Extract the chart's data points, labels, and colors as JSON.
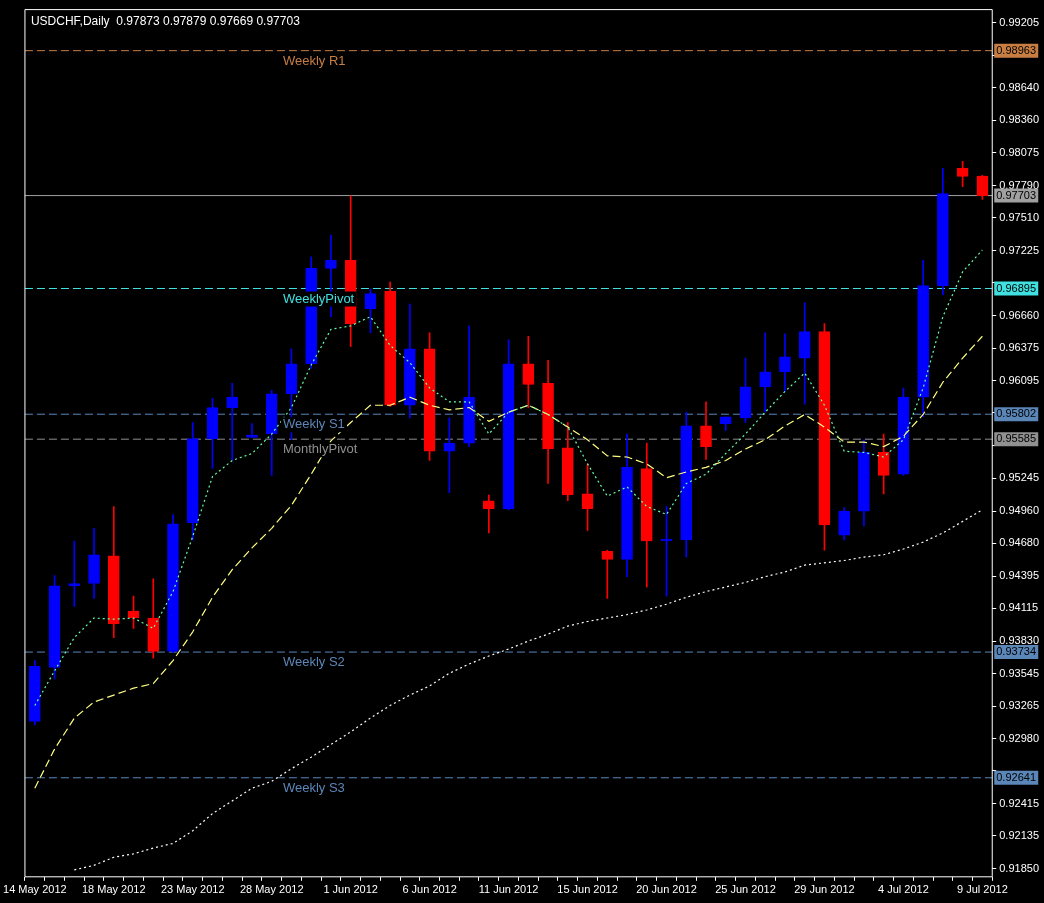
{
  "chart_data": {
    "type": "candlestick",
    "title": "USDCHF,Daily  0.97873 0.97879 0.97669 0.97703",
    "categories": [
      "14 May 2012",
      null,
      null,
      null,
      "18 May 2012",
      null,
      null,
      null,
      "23 May 2012",
      null,
      null,
      null,
      "28 May 2012",
      null,
      null,
      null,
      "1 Jun 2012",
      null,
      null,
      null,
      "6 Jun 2012",
      null,
      null,
      null,
      "11 Jun 2012",
      null,
      null,
      null,
      "15 Jun 2012",
      null,
      null,
      null,
      "20 Jun 2012",
      null,
      null,
      null,
      "25 Jun 2012",
      null,
      null,
      null,
      "29 Jun 2012",
      null,
      null,
      null,
      "4 Jul 2012",
      null,
      null,
      null,
      "9 Jul 2012"
    ],
    "ohlc": [
      [
        0.9313,
        0.9366,
        0.931,
        0.9361
      ],
      [
        0.936,
        0.944,
        0.935,
        0.9431
      ],
      [
        0.9431,
        0.947,
        0.9413,
        0.9433
      ],
      [
        0.9433,
        0.9481,
        0.942,
        0.9458
      ],
      [
        0.9457,
        0.95,
        0.9386,
        0.9398
      ],
      [
        0.9409,
        0.9422,
        0.9394,
        0.9403
      ],
      [
        0.9403,
        0.9437,
        0.9368,
        0.9374
      ],
      [
        0.9374,
        0.9493,
        0.9373,
        0.9485
      ],
      [
        0.9486,
        0.9573,
        0.9471,
        0.9559
      ],
      [
        0.9559,
        0.9594,
        0.9533,
        0.9586
      ],
      [
        0.9586,
        0.9607,
        0.954,
        0.9595
      ],
      [
        0.956,
        0.9572,
        0.956,
        0.9562
      ],
      [
        0.9563,
        0.9601,
        0.9527,
        0.9598
      ],
      [
        0.9598,
        0.9637,
        0.9558,
        0.9624
      ],
      [
        0.9624,
        0.9717,
        0.962,
        0.9707
      ],
      [
        0.9707,
        0.9736,
        0.9665,
        0.9714
      ],
      [
        0.9714,
        0.977,
        0.9639,
        0.9659
      ],
      [
        0.9672,
        0.9689,
        0.9651,
        0.9685
      ],
      [
        0.9687,
        0.9695,
        0.9587,
        0.9588
      ],
      [
        0.9588,
        0.9676,
        0.9577,
        0.9637
      ],
      [
        0.9637,
        0.9651,
        0.954,
        0.9548
      ],
      [
        0.9548,
        0.9577,
        0.9512,
        0.9555
      ],
      [
        0.9555,
        0.9657,
        0.9552,
        0.9595
      ],
      [
        0.9505,
        0.951,
        0.9477,
        0.9498
      ],
      [
        0.9498,
        0.9645,
        0.9497,
        0.9624
      ],
      [
        0.9624,
        0.9648,
        0.9586,
        0.9606
      ],
      [
        0.9607,
        0.9627,
        0.952,
        0.955
      ],
      [
        0.9551,
        0.9573,
        0.9505,
        0.951
      ],
      [
        0.9511,
        0.9537,
        0.9479,
        0.9498
      ],
      [
        0.9461,
        0.9462,
        0.942,
        0.9454
      ],
      [
        0.9454,
        0.9563,
        0.9439,
        0.9534
      ],
      [
        0.9533,
        0.9555,
        0.943,
        0.947
      ],
      [
        0.947,
        0.95,
        0.9422,
        0.9471
      ],
      [
        0.9471,
        0.9582,
        0.9456,
        0.957
      ],
      [
        0.957,
        0.9591,
        0.9541,
        0.9552
      ],
      [
        0.9572,
        0.9578,
        0.9566,
        0.9578
      ],
      [
        0.9577,
        0.9629,
        0.9573,
        0.9604
      ],
      [
        0.9604,
        0.9651,
        0.9582,
        0.9617
      ],
      [
        0.9617,
        0.965,
        0.96,
        0.963
      ],
      [
        0.9629,
        0.9677,
        0.9589,
        0.9652
      ],
      [
        0.9652,
        0.9659,
        0.9462,
        0.9484
      ],
      [
        0.9475,
        0.9499,
        0.9471,
        0.9496
      ],
      [
        0.9496,
        0.9558,
        0.9483,
        0.9547
      ],
      [
        0.9547,
        0.9563,
        0.9511,
        0.9527
      ],
      [
        0.9528,
        0.9603,
        0.9527,
        0.9595
      ],
      [
        0.9595,
        0.9714,
        0.9578,
        0.9692
      ],
      [
        0.9692,
        0.9794,
        0.9684,
        0.9772
      ],
      [
        0.9794,
        0.98,
        0.9778,
        0.9787
      ],
      [
        0.97873,
        0.97879,
        0.97669,
        0.97703
      ]
    ],
    "colors": [
      "#0000ff",
      "#0000ff",
      "#0000ff",
      "#0000ff",
      "#ff0000",
      "#ff0000",
      "#ff0000",
      "#0000ff",
      "#0000ff",
      "#0000ff",
      "#0000ff",
      "#0000ff",
      "#0000ff",
      "#0000ff",
      "#0000ff",
      "#0000ff",
      "#ff0000",
      "#0000ff",
      "#ff0000",
      "#0000ff",
      "#ff0000",
      "#0000ff",
      "#0000ff",
      "#ff0000",
      "#0000ff",
      "#ff0000",
      "#ff0000",
      "#ff0000",
      "#ff0000",
      "#ff0000",
      "#0000ff",
      "#ff0000",
      "#0000ff",
      "#0000ff",
      "#ff0000",
      "#0000ff",
      "#0000ff",
      "#0000ff",
      "#0000ff",
      "#0000ff",
      "#ff0000",
      "#0000ff",
      "#0000ff",
      "#ff0000",
      "#0000ff",
      "#0000ff",
      "#0000ff",
      "#ff0000",
      "#ff0000"
    ],
    "series": [
      {
        "type": "line",
        "color": "#66ffaa",
        "line_style": "dotted",
        "values": [
          0.9327,
          0.9357,
          0.9386,
          0.9403,
          0.9402,
          0.9403,
          0.9394,
          0.9426,
          0.9474,
          0.9526,
          0.954,
          0.9546,
          0.9563,
          0.9586,
          0.9623,
          0.9654,
          0.9657,
          0.9665,
          0.964,
          0.9625,
          0.9603,
          0.9591,
          0.9591,
          0.9563,
          0.9582,
          0.9588,
          0.958,
          0.9569,
          0.9537,
          0.9509,
          0.9517,
          0.95,
          0.9493,
          0.952,
          0.9528,
          0.9546,
          0.9563,
          0.9582,
          0.96,
          0.9616,
          0.9588,
          0.9548,
          0.9547,
          0.9543,
          0.9558,
          0.9603,
          0.9665,
          0.9704,
          0.9723
        ]
      },
      {
        "type": "line",
        "color": "#ffff80",
        "line_style": "dashed",
        "values": [
          0.9255,
          0.9289,
          0.9316,
          0.933,
          0.9336,
          0.9342,
          0.9346,
          0.9366,
          0.9391,
          0.9421,
          0.9445,
          0.9464,
          0.9481,
          0.9501,
          0.9528,
          0.9557,
          0.9573,
          0.9588,
          0.9588,
          0.9595,
          0.9588,
          0.9584,
          0.9586,
          0.9574,
          0.9582,
          0.9588,
          0.958,
          0.9569,
          0.9558,
          0.9544,
          0.9543,
          0.9537,
          0.9525,
          0.953,
          0.9534,
          0.954,
          0.955,
          0.9558,
          0.957,
          0.958,
          0.9569,
          0.9556,
          0.9556,
          0.9552,
          0.9561,
          0.958,
          0.9608,
          0.9629,
          0.9648
        ]
      },
      {
        "type": "line",
        "color": "#ffffff",
        "line_style": "dotted",
        "values": [
          null,
          null,
          0.9184,
          0.9188,
          0.9195,
          0.9198,
          0.9203,
          0.9207,
          0.9218,
          0.9233,
          0.9244,
          0.9255,
          0.9261,
          0.9272,
          0.9282,
          0.9293,
          0.9304,
          0.9316,
          0.9327,
          0.9336,
          0.9344,
          0.9355,
          0.9363,
          0.937,
          0.9376,
          0.9383,
          0.9389,
          0.9396,
          0.94,
          0.9403,
          0.9406,
          0.941,
          0.9415,
          0.9421,
          0.9426,
          0.943,
          0.9434,
          0.9439,
          0.9443,
          0.9449,
          0.9451,
          0.9453,
          0.9456,
          0.9458,
          0.9463,
          0.9469,
          0.9477,
          0.9487,
          0.9497
        ]
      }
    ],
    "ylim": [
      0.9178,
      0.9932
    ],
    "yticks": [
      {
        "value": 0.99205,
        "label": "0.99205"
      },
      {
        "value": 0.98925,
        "label": null
      },
      {
        "value": 0.9864,
        "label": "0.98640"
      },
      {
        "value": 0.9836,
        "label": "0.98360"
      },
      {
        "value": 0.98075,
        "label": "0.98075"
      },
      {
        "value": 0.9779,
        "label": "0.97790"
      },
      {
        "value": 0.9751,
        "label": "0.97510"
      },
      {
        "value": 0.97225,
        "label": "0.97225"
      },
      {
        "value": 0.96945,
        "label": null
      },
      {
        "value": 0.9666,
        "label": "0.96660"
      },
      {
        "value": 0.96375,
        "label": "0.96375"
      },
      {
        "value": 0.96095,
        "label": "0.96095"
      },
      {
        "value": 0.95815,
        "label": null
      },
      {
        "value": 0.9553,
        "label": null
      },
      {
        "value": 0.95245,
        "label": "0.95245"
      },
      {
        "value": 0.9496,
        "label": "0.94960"
      },
      {
        "value": 0.9468,
        "label": "0.94680"
      },
      {
        "value": 0.94395,
        "label": "0.94395"
      },
      {
        "value": 0.94115,
        "label": "0.94115"
      },
      {
        "value": 0.9383,
        "label": "0.93830"
      },
      {
        "value": 0.93545,
        "label": "0.93545"
      },
      {
        "value": 0.93265,
        "label": "0.93265"
      },
      {
        "value": 0.9298,
        "label": "0.92980"
      },
      {
        "value": 0.927,
        "label": null
      },
      {
        "value": 0.92415,
        "label": "0.92415"
      },
      {
        "value": 0.92135,
        "label": "0.92135"
      },
      {
        "value": 0.9185,
        "label": "0.91850"
      }
    ],
    "ref_lines": [
      {
        "axis": "y",
        "value": 0.98963,
        "label": "Weekly R1",
        "color": "#c87e43",
        "line_style": "dashed"
      },
      {
        "axis": "y",
        "value": 0.97703,
        "label": null,
        "color": "#a0a0a0",
        "line_style": "solid"
      },
      {
        "axis": "y",
        "value": 0.96895,
        "label": "WeeklyPivot",
        "color": "#40e0e0",
        "line_style": "dashed"
      },
      {
        "axis": "y",
        "value": 0.95802,
        "label": "Weekly S1",
        "color": "#5b86b8",
        "line_style": "dashed"
      },
      {
        "axis": "y",
        "value": 0.95585,
        "label": "MonthlyPivot",
        "color": "#909090",
        "line_style": "dashed"
      },
      {
        "axis": "y",
        "value": 0.93734,
        "label": "Weekly S2",
        "color": "#5b86b8",
        "line_style": "dashed"
      },
      {
        "axis": "y",
        "value": 0.92641,
        "label": "Weekly S3",
        "color": "#5b86b8",
        "line_style": "dashed"
      }
    ],
    "annotations": [
      {
        "text": "0.98963",
        "y": 0.98963
      },
      {
        "text": "0.97703",
        "y": 0.97703
      },
      {
        "text": "0.96895",
        "y": 0.96895
      },
      {
        "text": "0.95802",
        "y": 0.95802
      },
      {
        "text": "0.95585",
        "y": 0.95585
      },
      {
        "text": "0.93734",
        "y": 0.93734
      },
      {
        "text": "0.92641",
        "y": 0.92641
      }
    ]
  }
}
